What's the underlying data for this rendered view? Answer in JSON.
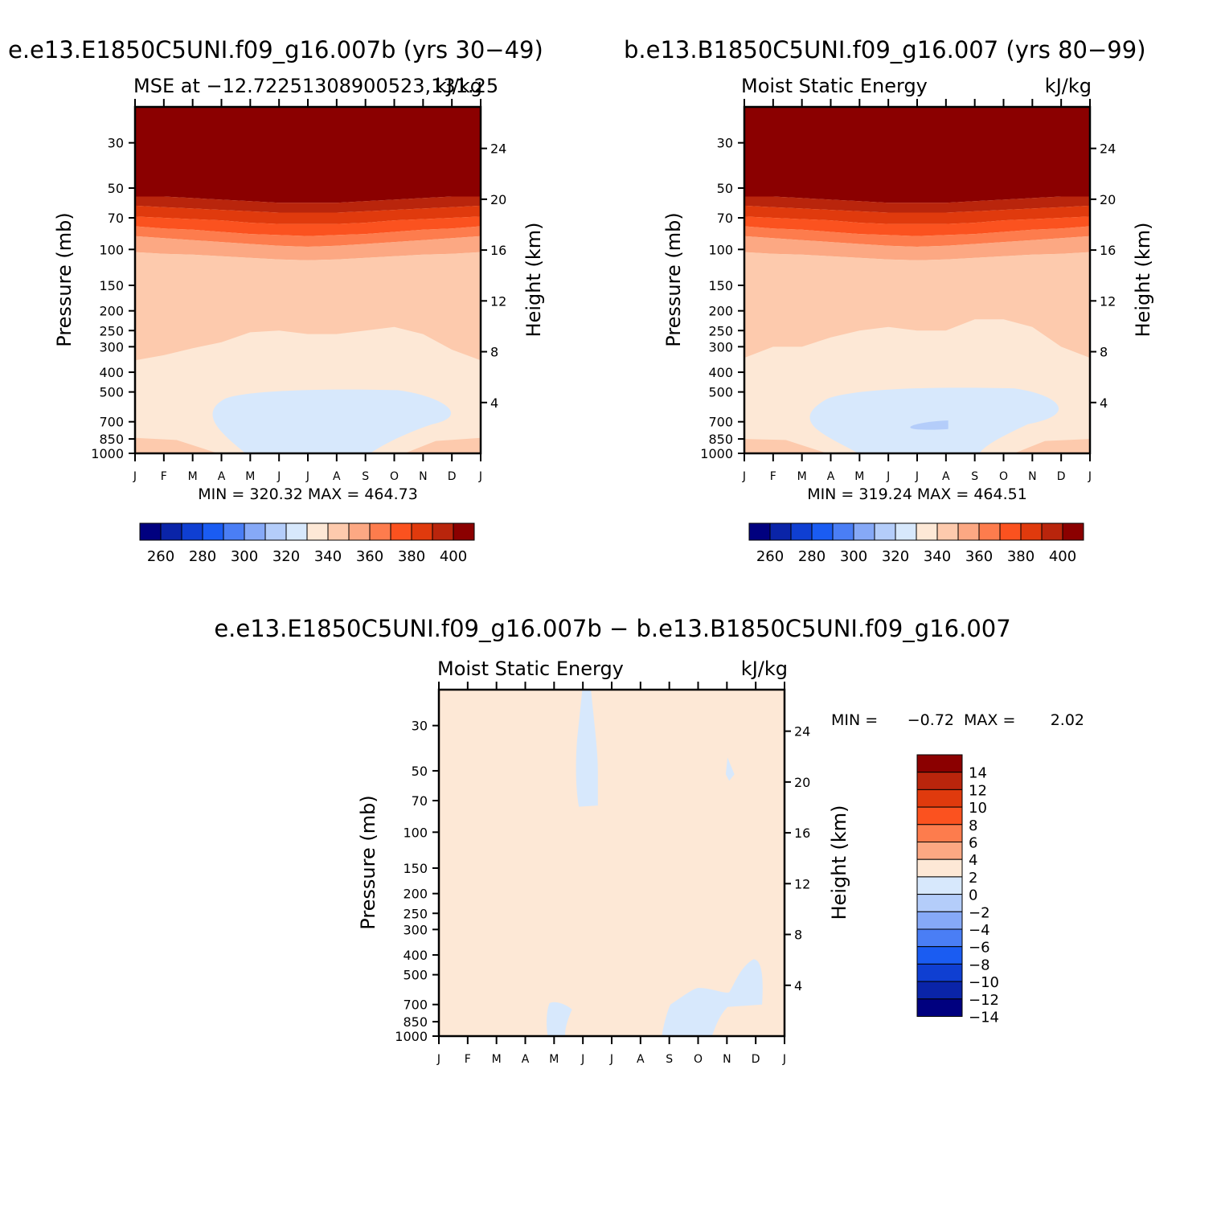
{
  "figure": {
    "left_title": "e.e13.E1850C5UNI.f09_g16.007b (yrs 30−49)",
    "right_title": "b.e13.B1850C5UNI.f09_g16.007 (yrs 80−99)",
    "diff_title": "e.e13.E1850C5UNI.f09_g16.007b − b.e13.B1850C5UNI.f09_g16.007"
  },
  "chart_data": [
    {
      "id": "panel-e-case",
      "type": "contour",
      "subtitle_left": "MSE at −12.72251308900523,131.25",
      "subtitle_right": "kJ/kg",
      "ylabel": "Pressure (mb)",
      "ylabel_right": "Height (km)",
      "y_scale": "log",
      "ylim": [
        1000,
        20
      ],
      "y_ticks": [
        30,
        50,
        70,
        100,
        150,
        200,
        250,
        300,
        400,
        500,
        700,
        850,
        1000
      ],
      "y_right_ticks": [
        24,
        20,
        16,
        12,
        8,
        4
      ],
      "x_ticks": [
        "J",
        "F",
        "M",
        "A",
        "M",
        "J",
        "J",
        "A",
        "S",
        "O",
        "N",
        "D",
        "J"
      ],
      "stats": "MIN = 320.32 MAX = 464.73",
      "levels": [
        260,
        280,
        300,
        320,
        340,
        360,
        380,
        400
      ],
      "contour_boundaries_mb": {
        "band_400_plus": [
          55,
          55,
          56,
          57,
          58,
          59,
          59,
          59,
          58,
          57,
          56,
          55,
          55
        ],
        "band_390_400": [
          61,
          62,
          63,
          64,
          65,
          66,
          66,
          66,
          65,
          64,
          63,
          62,
          61
        ],
        "band_380_390": [
          69,
          70,
          71,
          72,
          74,
          75,
          75,
          75,
          74,
          72,
          71,
          70,
          69
        ],
        "band_370_380": [
          77,
          79,
          80,
          82,
          84,
          85,
          86,
          85,
          84,
          82,
          80,
          79,
          77
        ],
        "band_360_370": [
          86,
          88,
          90,
          92,
          94,
          96,
          97,
          96,
          94,
          92,
          90,
          88,
          86
        ],
        "band_350_360": [
          103,
          105,
          106,
          108,
          110,
          112,
          113,
          112,
          110,
          108,
          106,
          105,
          103
        ],
        "band_340_350": [
          350,
          330,
          305,
          285,
          255,
          250,
          260,
          260,
          250,
          240,
          260,
          310,
          350
        ]
      },
      "min_region_330_340": {
        "months": [
          "A",
          "N"
        ],
        "top_mb": 480,
        "bottom_mb": 1000
      }
    },
    {
      "id": "panel-b-case",
      "type": "contour",
      "subtitle_left": "Moist Static Energy",
      "subtitle_right": "kJ/kg",
      "ylabel": "Pressure (mb)",
      "ylabel_right": "Height (km)",
      "y_scale": "log",
      "ylim": [
        1000,
        20
      ],
      "y_ticks": [
        30,
        50,
        70,
        100,
        150,
        200,
        250,
        300,
        400,
        500,
        700,
        850,
        1000
      ],
      "y_right_ticks": [
        24,
        20,
        16,
        12,
        8,
        4
      ],
      "x_ticks": [
        "J",
        "F",
        "M",
        "A",
        "M",
        "J",
        "J",
        "A",
        "S",
        "O",
        "N",
        "D",
        "J"
      ],
      "stats": "MIN = 319.24 MAX = 464.51",
      "levels": [
        260,
        280,
        300,
        320,
        340,
        360,
        380,
        400
      ],
      "contour_boundaries_mb": {
        "band_400_plus": [
          55,
          55,
          56,
          57,
          58,
          59,
          59,
          59,
          58,
          57,
          56,
          55,
          55
        ],
        "band_390_400": [
          61,
          62,
          63,
          64,
          65,
          66,
          66,
          66,
          65,
          64,
          63,
          62,
          61
        ],
        "band_380_390": [
          69,
          70,
          71,
          72,
          74,
          75,
          75,
          75,
          74,
          72,
          71,
          70,
          69
        ],
        "band_370_380": [
          77,
          79,
          80,
          82,
          84,
          85,
          86,
          85,
          84,
          82,
          80,
          79,
          77
        ],
        "band_360_370": [
          86,
          88,
          90,
          92,
          94,
          96,
          97,
          96,
          94,
          92,
          90,
          88,
          86
        ],
        "band_350_360": [
          103,
          105,
          106,
          108,
          110,
          112,
          113,
          112,
          110,
          108,
          106,
          105,
          103
        ],
        "band_340_350": [
          340,
          300,
          300,
          270,
          250,
          240,
          250,
          250,
          220,
          220,
          240,
          300,
          340
        ]
      },
      "min_region_330_340": {
        "months": [
          "M",
          "D"
        ],
        "top_mb": 470,
        "bottom_mb": 1000
      },
      "min_region_320_330": {
        "months": [
          "J",
          "A"
        ],
        "top_mb": 690,
        "bottom_mb": 760
      }
    },
    {
      "id": "panel-difference",
      "type": "contour",
      "subtitle_left": "Moist Static Energy",
      "subtitle_right": "kJ/kg",
      "ylabel": "Pressure (mb)",
      "ylabel_right": "Height (km)",
      "y_scale": "log",
      "ylim": [
        1000,
        20
      ],
      "y_ticks": [
        30,
        50,
        70,
        100,
        150,
        200,
        250,
        300,
        400,
        500,
        700,
        850,
        1000
      ],
      "y_right_ticks": [
        24,
        20,
        16,
        12,
        8,
        4
      ],
      "x_ticks": [
        "J",
        "F",
        "M",
        "A",
        "M",
        "J",
        "J",
        "A",
        "S",
        "O",
        "N",
        "D",
        "J"
      ],
      "stats_min_label": "MIN =",
      "stats_min_value": "−0.72",
      "stats_max_label": "MAX =",
      "stats_max_value": "2.02",
      "levels": [
        "14",
        "12",
        "10",
        "8",
        "6",
        "4",
        "2",
        "0",
        "−2",
        "−4",
        "−6",
        "−8",
        "−10",
        "−12",
        "−14"
      ],
      "background_band": "0 to 2",
      "negative_regions": "0 to −2 near J at 20–75 mb, N at 45–55 mb, M–J below 650 mb, S–D below 420 mb"
    }
  ],
  "colorbars": {
    "positive_steps": [
      "#00007f",
      "#0a24a8",
      "#0f3fd2",
      "#1a5cf2",
      "#4a7ef5",
      "#86a9f7",
      "#b4cdfa",
      "#d7e8fc",
      "#fde8d6",
      "#fdcaad",
      "#fca883",
      "#fd7c4d",
      "#fb521f",
      "#e03a0d",
      "#b9250c",
      "#8b0000"
    ],
    "difference_steps": [
      "#8b0000",
      "#b9250c",
      "#e03a0d",
      "#fb521f",
      "#fd7c4d",
      "#fca883",
      "#fde8d6",
      "#d7e8fc",
      "#b4cdfa",
      "#86a9f7",
      "#4a7ef5",
      "#1a5cf2",
      "#0f3fd2",
      "#0a24a8",
      "#00007f"
    ]
  },
  "colors": {
    "band_400_plus": "#8b0000",
    "band_390_400": "#b9250c",
    "band_380_390": "#e03a0d",
    "band_370_380": "#fb521f",
    "band_360_370": "#fd7c4d",
    "band_350_360": "#fca883",
    "band_340_350": "#fdcaad",
    "band_330_340": "#fde8d6",
    "band_320_330": "#d7e8fc",
    "band_310_320": "#b4cdfa",
    "diff_positive_small": "#fde8d6",
    "diff_negative_small": "#d7e8fc"
  }
}
